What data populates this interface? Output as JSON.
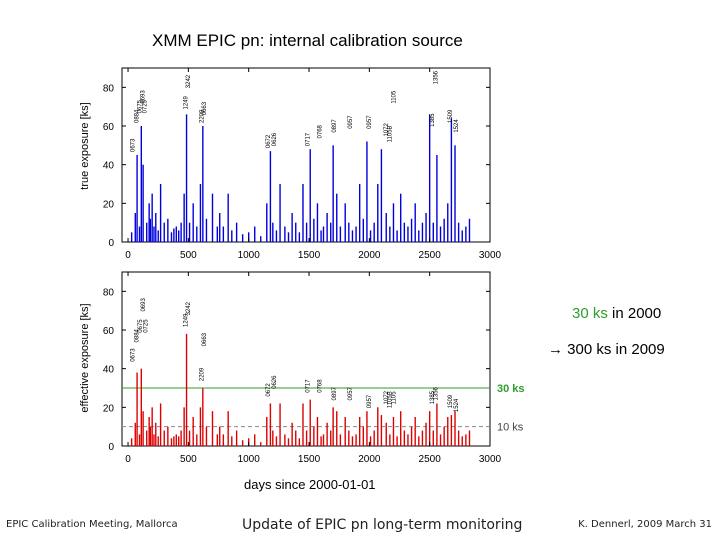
{
  "title": "XMM EPIC pn: internal calibration source",
  "xlabel": "days since 2000-01-01",
  "annotation": {
    "line1_value": "30 ks",
    "line1_rest": " in 2000",
    "arrow": "→",
    "line2": " 300 ks in 2009"
  },
  "footer": {
    "left": "EPIC Calibration Meeting, Mallorca",
    "center": "Update of EPIC pn long-term monitoring",
    "right": "K. Dennerl, 2009 March 31"
  },
  "chart_data": [
    {
      "type": "bar",
      "ylabel": "true exposure [ks]",
      "xlim": [
        -50,
        3000
      ],
      "ylim": [
        0,
        90
      ],
      "xticks": [
        0,
        500,
        1000,
        1500,
        2000,
        2500,
        3000
      ],
      "yticks": [
        0,
        20,
        40,
        60,
        80
      ],
      "color": "#0000dd",
      "x": [
        30,
        60,
        75,
        95,
        110,
        125,
        155,
        175,
        185,
        200,
        215,
        230,
        250,
        270,
        300,
        330,
        360,
        380,
        400,
        420,
        440,
        465,
        485,
        510,
        540,
        570,
        600,
        620,
        650,
        700,
        740,
        760,
        790,
        830,
        860,
        900,
        950,
        1000,
        1050,
        1100,
        1150,
        1180,
        1200,
        1230,
        1260,
        1300,
        1330,
        1360,
        1390,
        1420,
        1450,
        1480,
        1510,
        1540,
        1570,
        1600,
        1620,
        1650,
        1680,
        1700,
        1730,
        1760,
        1800,
        1830,
        1860,
        1890,
        1920,
        1950,
        1980,
        2010,
        2040,
        2070,
        2100,
        2140,
        2170,
        2200,
        2230,
        2260,
        2290,
        2320,
        2350,
        2380,
        2410,
        2440,
        2470,
        2500,
        2530,
        2560,
        2590,
        2620,
        2650,
        2680,
        2710,
        2740,
        2770,
        2800,
        2830
      ],
      "values": [
        5,
        15,
        45,
        8,
        60,
        40,
        10,
        20,
        12,
        25,
        8,
        15,
        6,
        30,
        10,
        12,
        5,
        7,
        8,
        6,
        10,
        25,
        66,
        10,
        20,
        8,
        30,
        60,
        12,
        25,
        8,
        15,
        8,
        25,
        6,
        10,
        4,
        5,
        8,
        3,
        20,
        47,
        10,
        6,
        30,
        8,
        5,
        15,
        10,
        5,
        30,
        10,
        48,
        12,
        20,
        6,
        8,
        15,
        10,
        50,
        25,
        8,
        20,
        10,
        6,
        8,
        30,
        12,
        52,
        6,
        10,
        30,
        48,
        15,
        8,
        20,
        6,
        25,
        10,
        8,
        12,
        20,
        6,
        10,
        15,
        66,
        10,
        45,
        8,
        12,
        20,
        64,
        50,
        10,
        6,
        8,
        12
      ],
      "labels": [
        {
          "x": 30,
          "y": 45,
          "text": "0673"
        },
        {
          "x": 60,
          "y": 60,
          "text": "0884"
        },
        {
          "x": 85,
          "y": 65,
          "text": "0675"
        },
        {
          "x": 110,
          "y": 70,
          "text": "0693"
        },
        {
          "x": 130,
          "y": 65,
          "text": "0725"
        },
        {
          "x": 470,
          "y": 67,
          "text": "1249"
        },
        {
          "x": 490,
          "y": 78,
          "text": "3242"
        },
        {
          "x": 600,
          "y": 60,
          "text": "2209"
        },
        {
          "x": 620,
          "y": 64,
          "text": "0663"
        },
        {
          "x": 1150,
          "y": 47,
          "text": "0672"
        },
        {
          "x": 1200,
          "y": 48,
          "text": "0626"
        },
        {
          "x": 1480,
          "y": 48,
          "text": "0717"
        },
        {
          "x": 1580,
          "y": 52,
          "text": "0768"
        },
        {
          "x": 1700,
          "y": 55,
          "text": "0897"
        },
        {
          "x": 1830,
          "y": 57,
          "text": "0957"
        },
        {
          "x": 1990,
          "y": 57,
          "text": "0957"
        },
        {
          "x": 2130,
          "y": 53,
          "text": "1072"
        },
        {
          "x": 2160,
          "y": 50,
          "text": "1105B"
        },
        {
          "x": 2190,
          "y": 70,
          "text": "1105"
        },
        {
          "x": 2510,
          "y": 58,
          "text": "1385"
        },
        {
          "x": 2540,
          "y": 80,
          "text": "1356"
        },
        {
          "x": 2660,
          "y": 60,
          "text": "1509"
        },
        {
          "x": 2710,
          "y": 55,
          "text": "1524"
        }
      ]
    },
    {
      "type": "bar",
      "ylabel": "effective exposure [ks]",
      "xlim": [
        -50,
        3000
      ],
      "ylim": [
        0,
        90
      ],
      "xticks": [
        0,
        500,
        1000,
        1500,
        2000,
        2500,
        3000
      ],
      "yticks": [
        0,
        20,
        40,
        60,
        80
      ],
      "color": "#dd0000",
      "reference_lines": [
        {
          "y": 30,
          "label": "30 ks",
          "style": "solid",
          "color": "#2e9e2e"
        },
        {
          "y": 10,
          "label": "10 ks",
          "style": "dashed",
          "color": "#888888"
        }
      ],
      "x": [
        30,
        60,
        75,
        95,
        110,
        125,
        155,
        175,
        185,
        200,
        215,
        230,
        250,
        270,
        300,
        330,
        360,
        380,
        400,
        420,
        440,
        465,
        485,
        510,
        540,
        570,
        600,
        620,
        650,
        700,
        740,
        760,
        790,
        830,
        860,
        900,
        950,
        1000,
        1050,
        1100,
        1150,
        1180,
        1200,
        1230,
        1260,
        1300,
        1330,
        1360,
        1390,
        1420,
        1450,
        1480,
        1510,
        1540,
        1570,
        1600,
        1620,
        1650,
        1680,
        1700,
        1730,
        1760,
        1800,
        1830,
        1860,
        1890,
        1920,
        1950,
        1980,
        2010,
        2040,
        2070,
        2100,
        2140,
        2170,
        2200,
        2230,
        2260,
        2290,
        2320,
        2350,
        2380,
        2410,
        2440,
        2470,
        2500,
        2530,
        2560,
        2590,
        2620,
        2650,
        2680,
        2710,
        2740,
        2770,
        2800,
        2830
      ],
      "values": [
        4,
        12,
        38,
        6,
        40,
        18,
        8,
        15,
        10,
        20,
        6,
        12,
        5,
        22,
        8,
        10,
        4,
        5,
        6,
        5,
        8,
        20,
        58,
        8,
        15,
        6,
        20,
        30,
        10,
        18,
        6,
        10,
        6,
        18,
        5,
        8,
        3,
        4,
        6,
        2,
        15,
        22,
        8,
        5,
        22,
        6,
        4,
        12,
        8,
        4,
        22,
        8,
        24,
        10,
        15,
        5,
        6,
        12,
        8,
        20,
        18,
        6,
        15,
        8,
        5,
        6,
        15,
        10,
        18,
        5,
        8,
        20,
        16,
        12,
        6,
        15,
        5,
        18,
        8,
        6,
        10,
        15,
        5,
        8,
        12,
        18,
        8,
        22,
        6,
        10,
        15,
        16,
        18,
        8,
        5,
        6,
        8
      ],
      "labels": [
        {
          "x": 30,
          "y": 42,
          "text": "0673"
        },
        {
          "x": 60,
          "y": 52,
          "text": "0884"
        },
        {
          "x": 90,
          "y": 57,
          "text": "0675"
        },
        {
          "x": 115,
          "y": 68,
          "text": "0693"
        },
        {
          "x": 135,
          "y": 57,
          "text": "0725"
        },
        {
          "x": 470,
          "y": 60,
          "text": "1249"
        },
        {
          "x": 490,
          "y": 66,
          "text": "3242"
        },
        {
          "x": 600,
          "y": 32,
          "text": "2209"
        },
        {
          "x": 620,
          "y": 50,
          "text": "0663"
        },
        {
          "x": 1150,
          "y": 24,
          "text": "0672"
        },
        {
          "x": 1200,
          "y": 28,
          "text": "0626"
        },
        {
          "x": 1480,
          "y": 26,
          "text": "0717"
        },
        {
          "x": 1580,
          "y": 26,
          "text": "0768"
        },
        {
          "x": 1700,
          "y": 22,
          "text": "0897"
        },
        {
          "x": 1830,
          "y": 22,
          "text": "0957"
        },
        {
          "x": 1990,
          "y": 18,
          "text": "0957"
        },
        {
          "x": 2130,
          "y": 20,
          "text": "1072"
        },
        {
          "x": 2160,
          "y": 18,
          "text": "1105B"
        },
        {
          "x": 2190,
          "y": 20,
          "text": "1105"
        },
        {
          "x": 2510,
          "y": 20,
          "text": "1385"
        },
        {
          "x": 2540,
          "y": 22,
          "text": "1356"
        },
        {
          "x": 2660,
          "y": 18,
          "text": "1509"
        },
        {
          "x": 2710,
          "y": 16,
          "text": "1524"
        }
      ]
    }
  ]
}
